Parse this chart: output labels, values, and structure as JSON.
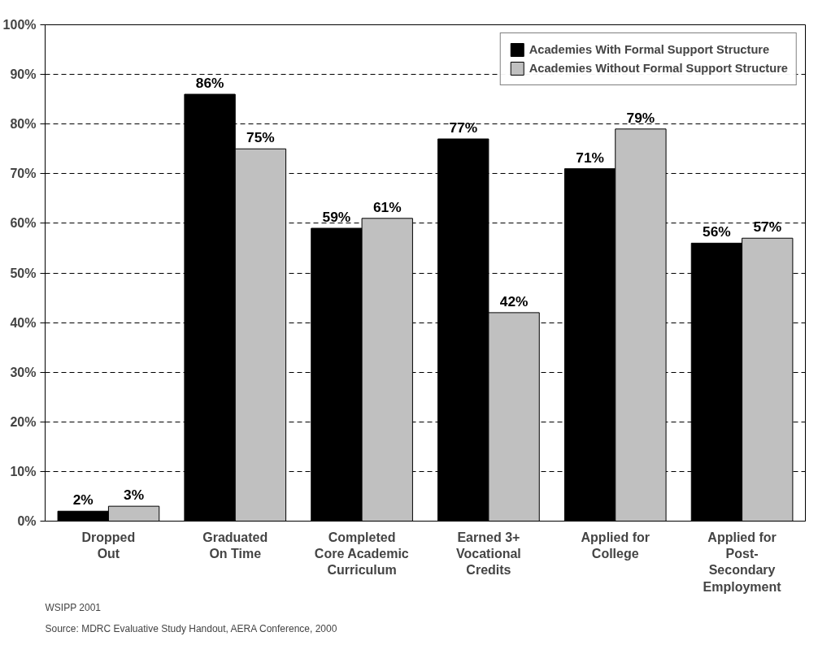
{
  "chart_data": {
    "type": "bar",
    "categories": [
      "Dropped\nOut",
      "Graduated\nOn Time",
      "Completed\nCore Academic\nCurriculum",
      "Earned 3+\nVocational\nCredits",
      "Applied for\nCollege",
      "Applied for\nPost-\nSecondary\nEmployment"
    ],
    "series": [
      {
        "name": "Academies With Formal Support Structure",
        "color": "#000000",
        "values": [
          2,
          86,
          59,
          77,
          71,
          56
        ],
        "value_labels": [
          "2%",
          "86%",
          "59%",
          "77%",
          "71%",
          "56%"
        ]
      },
      {
        "name": "Academies Without Formal Support Structure",
        "color": "#c0c0c0",
        "values": [
          3,
          75,
          61,
          42,
          79,
          57
        ],
        "value_labels": [
          "3%",
          "75%",
          "61%",
          "42%",
          "79%",
          "57%"
        ]
      }
    ],
    "ylim": [
      0,
      100
    ],
    "yticks": [
      {
        "value": 0,
        "label": "0%"
      },
      {
        "value": 10,
        "label": "10%"
      },
      {
        "value": 20,
        "label": "20%"
      },
      {
        "value": 30,
        "label": "30%"
      },
      {
        "value": 40,
        "label": "40%"
      },
      {
        "value": 50,
        "label": "50%"
      },
      {
        "value": 60,
        "label": "60%"
      },
      {
        "value": 70,
        "label": "70%"
      },
      {
        "value": 80,
        "label": "80%"
      },
      {
        "value": 90,
        "label": "90%"
      },
      {
        "value": 100,
        "label": "100%"
      }
    ],
    "grid": "y",
    "legend": "top right",
    "annotations": [
      "WSIPP 2001",
      "Source:  MDRC Evaluative Study Handout, AERA Conference, 2000"
    ]
  }
}
